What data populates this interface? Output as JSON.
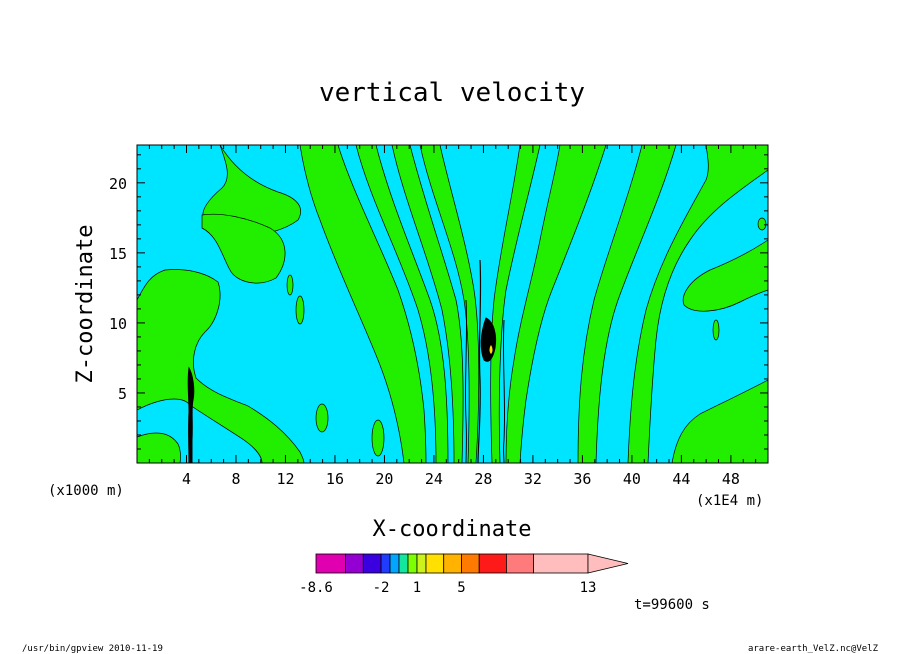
{
  "chart_data": {
    "type": "heatmap",
    "title": "vertical velocity",
    "xlabel": "X-coordinate",
    "ylabel": "Z-coordinate",
    "x_ticks": [
      "4",
      "8",
      "12",
      "16",
      "20",
      "24",
      "28",
      "32",
      "36",
      "40",
      "44",
      "48"
    ],
    "x_tick_values": [
      4,
      8,
      12,
      16,
      20,
      24,
      28,
      32,
      36,
      40,
      44,
      48
    ],
    "y_ticks": [
      "5",
      "10",
      "15",
      "20"
    ],
    "y_tick_values": [
      5,
      10,
      15,
      20
    ],
    "xlim": [
      0,
      51
    ],
    "ylim": [
      0,
      22.7
    ],
    "x_unit_label": "(x1000 m)",
    "x_unit_label_right": "(x1E4 m)",
    "colorbar": {
      "levels": [
        -8.6,
        -6.5,
        -4.2,
        -2,
        -1,
        0,
        0.5,
        1,
        2,
        3,
        5,
        7,
        9,
        11,
        13
      ],
      "labels": [
        "-8.6",
        "-2",
        "1",
        "5",
        "13"
      ],
      "colors": [
        "#e000b0",
        "#9400d3",
        "#3a00e0",
        "#1f3cff",
        "#00a6ff",
        "#14e6a0",
        "#7cff00",
        "#ccf21c",
        "#ffe000",
        "#ffb300",
        "#ff7a00",
        "#ff1a1a",
        "#ff7a7a",
        "#ffbdbd"
      ]
    },
    "fill_colors": {
      "negative": "#00e5ff",
      "positive": "#22ee00",
      "strong": "#000000"
    },
    "time_label": "t=99600 s",
    "footer_left": "/usr/bin/gpview  2010-11-19",
    "footer_right": "arare-earth_VelZ.nc@VelZ"
  }
}
